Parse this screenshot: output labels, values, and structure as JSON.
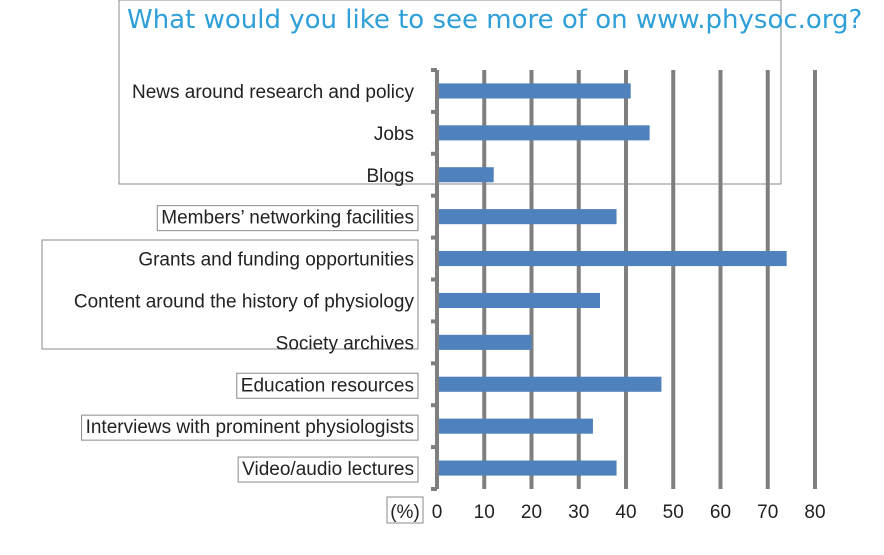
{
  "chart_data": {
    "type": "bar",
    "orientation": "horizontal",
    "title": "What would you like to see more of on www.physoc.org?",
    "unit_label": "(%)",
    "categories": [
      "News around research and policy",
      "Jobs",
      "Blogs",
      "Members’ networking facilities",
      "Grants and funding opportunities",
      "Content around the history of physiology",
      "Society archives",
      "Education resources",
      "Interviews with prominent physiologists",
      "Video/audio lectures"
    ],
    "values": [
      41,
      45,
      12,
      38,
      74,
      34.5,
      20,
      47.5,
      33,
      38
    ],
    "xlim": [
      0,
      80
    ],
    "xticks": [
      0,
      10,
      20,
      30,
      40,
      50,
      60,
      70,
      80
    ],
    "grid": true,
    "bar_color": "#4f81bd",
    "grid_color": "#7f7f7f",
    "title_color": "#2e9fd8"
  }
}
